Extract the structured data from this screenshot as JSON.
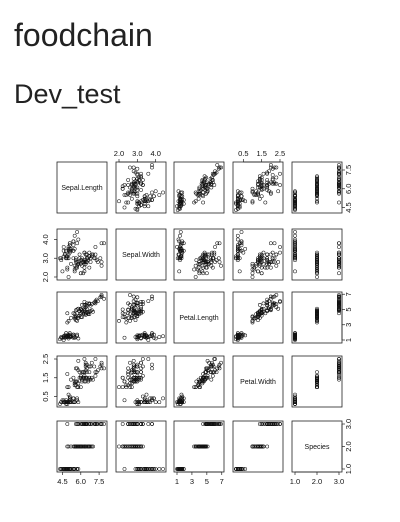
{
  "page": {
    "title": "foodchain",
    "subtitle": "Dev_test"
  },
  "chart_data": {
    "type": "scatter",
    "subtype": "scatterplot-matrix",
    "point_shape": "open-circle",
    "variables": [
      {
        "name": "Sepal.Length",
        "range": [
          4.3,
          7.9
        ],
        "ticks": [
          "4.5",
          "6.0",
          "7.5"
        ],
        "tick_values": [
          4.5,
          6.0,
          7.5
        ]
      },
      {
        "name": "Sepal.Width",
        "range": [
          2.0,
          4.4
        ],
        "ticks": [
          "2.0",
          "3.0",
          "4.0"
        ],
        "tick_values": [
          2.0,
          3.0,
          4.0
        ]
      },
      {
        "name": "Petal.Length",
        "range": [
          1.0,
          6.9
        ],
        "ticks": [
          "1",
          "3",
          "5",
          "7"
        ],
        "tick_values": [
          1,
          3,
          5,
          7
        ]
      },
      {
        "name": "Petal.Width",
        "range": [
          0.1,
          2.5
        ],
        "ticks": [
          "0.5",
          "1.5",
          "2.5"
        ],
        "tick_values": [
          0.5,
          1.5,
          2.5
        ]
      },
      {
        "name": "Species",
        "range": [
          1.0,
          3.0
        ],
        "ticks": [
          "1.0",
          "2.0",
          "3.0"
        ],
        "tick_values": [
          1.0,
          2.0,
          3.0
        ]
      }
    ],
    "records": [
      [
        4.9,
        3.0,
        1.4,
        0.2,
        1
      ],
      [
        4.7,
        3.2,
        1.3,
        0.2,
        1
      ],
      [
        4.6,
        3.1,
        1.5,
        0.2,
        1
      ],
      [
        5.0,
        3.6,
        1.4,
        0.2,
        1
      ],
      [
        5.4,
        3.9,
        1.7,
        0.4,
        1
      ],
      [
        4.6,
        3.4,
        1.4,
        0.3,
        1
      ],
      [
        5.0,
        3.4,
        1.5,
        0.2,
        1
      ],
      [
        4.4,
        2.9,
        1.4,
        0.2,
        1
      ],
      [
        4.9,
        3.1,
        1.5,
        0.1,
        1
      ],
      [
        5.4,
        3.7,
        1.5,
        0.2,
        1
      ],
      [
        4.8,
        3.4,
        1.6,
        0.2,
        1
      ],
      [
        4.8,
        3.0,
        1.4,
        0.1,
        1
      ],
      [
        4.3,
        3.0,
        1.1,
        0.1,
        1
      ],
      [
        5.8,
        4.0,
        1.2,
        0.2,
        1
      ],
      [
        5.7,
        4.4,
        1.5,
        0.4,
        1
      ],
      [
        5.4,
        3.9,
        1.3,
        0.4,
        1
      ],
      [
        5.1,
        3.5,
        1.4,
        0.3,
        1
      ],
      [
        5.7,
        3.8,
        1.7,
        0.3,
        1
      ],
      [
        5.1,
        3.8,
        1.5,
        0.3,
        1
      ],
      [
        5.4,
        3.4,
        1.7,
        0.2,
        1
      ],
      [
        5.1,
        3.7,
        1.5,
        0.4,
        1
      ],
      [
        4.6,
        3.6,
        1.0,
        0.2,
        1
      ],
      [
        5.1,
        3.3,
        1.7,
        0.5,
        1
      ],
      [
        4.8,
        3.4,
        1.9,
        0.2,
        1
      ],
      [
        5.0,
        3.0,
        1.6,
        0.2,
        1
      ],
      [
        5.2,
        3.5,
        1.5,
        0.2,
        1
      ],
      [
        5.2,
        3.4,
        1.4,
        0.2,
        1
      ],
      [
        4.7,
        3.2,
        1.6,
        0.2,
        1
      ],
      [
        4.8,
        3.1,
        1.6,
        0.2,
        1
      ],
      [
        5.4,
        3.4,
        1.5,
        0.4,
        1
      ],
      [
        5.5,
        4.2,
        1.4,
        0.2,
        1
      ],
      [
        4.9,
        3.1,
        1.5,
        0.2,
        1
      ],
      [
        5.0,
        3.2,
        1.2,
        0.2,
        1
      ],
      [
        5.5,
        3.5,
        1.3,
        0.2,
        1
      ],
      [
        4.4,
        3.0,
        1.3,
        0.2,
        1
      ],
      [
        5.1,
        3.4,
        1.5,
        0.2,
        1
      ],
      [
        4.5,
        2.3,
        1.3,
        0.3,
        1
      ],
      [
        5.0,
        3.5,
        1.6,
        0.6,
        1
      ],
      [
        5.1,
        3.8,
        1.9,
        0.4,
        1
      ],
      [
        4.8,
        3.0,
        1.4,
        0.3,
        1
      ],
      [
        7.0,
        3.2,
        4.7,
        1.4,
        2
      ],
      [
        6.4,
        3.2,
        4.5,
        1.5,
        2
      ],
      [
        6.9,
        3.1,
        4.9,
        1.5,
        2
      ],
      [
        5.5,
        2.3,
        4.0,
        1.3,
        2
      ],
      [
        6.5,
        2.8,
        4.6,
        1.5,
        2
      ],
      [
        5.7,
        2.8,
        4.5,
        1.3,
        2
      ],
      [
        6.3,
        3.3,
        4.7,
        1.6,
        2
      ],
      [
        4.9,
        2.4,
        3.3,
        1.0,
        2
      ],
      [
        6.6,
        2.9,
        4.6,
        1.3,
        2
      ],
      [
        5.2,
        2.7,
        3.9,
        1.4,
        2
      ],
      [
        5.0,
        2.0,
        3.5,
        1.0,
        2
      ],
      [
        5.9,
        3.0,
        4.2,
        1.5,
        2
      ],
      [
        6.0,
        2.2,
        4.0,
        1.0,
        2
      ],
      [
        6.1,
        2.9,
        4.7,
        1.4,
        2
      ],
      [
        5.6,
        2.9,
        3.6,
        1.3,
        2
      ],
      [
        6.7,
        3.1,
        4.4,
        1.4,
        2
      ],
      [
        5.8,
        2.7,
        4.1,
        1.0,
        2
      ],
      [
        6.2,
        2.2,
        4.5,
        1.5,
        2
      ],
      [
        5.6,
        2.5,
        3.9,
        1.1,
        2
      ],
      [
        5.9,
        3.2,
        4.8,
        1.8,
        2
      ],
      [
        6.1,
        2.8,
        4.0,
        1.3,
        2
      ],
      [
        6.3,
        2.5,
        4.9,
        1.5,
        2
      ],
      [
        6.4,
        2.9,
        4.3,
        1.3,
        2
      ],
      [
        6.6,
        3.0,
        4.4,
        1.4,
        2
      ],
      [
        6.8,
        2.8,
        4.8,
        1.4,
        2
      ],
      [
        6.0,
        2.9,
        4.5,
        1.5,
        2
      ],
      [
        5.7,
        2.6,
        3.5,
        1.0,
        2
      ],
      [
        5.5,
        2.4,
        3.8,
        1.1,
        2
      ],
      [
        5.8,
        2.7,
        3.9,
        1.2,
        2
      ],
      [
        6.0,
        2.7,
        5.1,
        1.6,
        2
      ],
      [
        5.4,
        3.0,
        4.5,
        1.5,
        2
      ],
      [
        6.7,
        3.1,
        4.7,
        1.5,
        2
      ],
      [
        6.3,
        2.3,
        4.4,
        1.3,
        2
      ],
      [
        5.6,
        3.0,
        4.1,
        1.3,
        2
      ],
      [
        5.5,
        2.6,
        4.4,
        1.2,
        2
      ],
      [
        6.3,
        3.3,
        6.0,
        2.5,
        3
      ],
      [
        5.8,
        2.7,
        5.1,
        1.9,
        3
      ],
      [
        7.1,
        3.0,
        5.9,
        2.1,
        3
      ],
      [
        6.3,
        2.9,
        5.6,
        1.8,
        3
      ],
      [
        6.5,
        3.0,
        5.8,
        2.2,
        3
      ],
      [
        7.6,
        3.0,
        6.6,
        2.1,
        3
      ],
      [
        4.9,
        2.5,
        4.5,
        1.7,
        3
      ],
      [
        7.3,
        2.9,
        6.3,
        1.8,
        3
      ],
      [
        6.7,
        2.5,
        5.8,
        1.8,
        3
      ],
      [
        7.2,
        3.6,
        6.1,
        2.5,
        3
      ],
      [
        6.5,
        3.2,
        5.1,
        2.0,
        3
      ],
      [
        6.4,
        2.7,
        5.3,
        1.9,
        3
      ],
      [
        6.8,
        3.0,
        5.5,
        2.1,
        3
      ],
      [
        5.7,
        2.5,
        5.0,
        2.0,
        3
      ],
      [
        5.8,
        2.8,
        5.1,
        2.4,
        3
      ],
      [
        6.4,
        3.2,
        5.3,
        2.3,
        3
      ],
      [
        6.5,
        3.0,
        5.5,
        1.8,
        3
      ],
      [
        7.7,
        3.8,
        6.7,
        2.2,
        3
      ],
      [
        7.7,
        2.6,
        6.9,
        2.3,
        3
      ],
      [
        6.0,
        2.2,
        5.0,
        1.5,
        3
      ],
      [
        6.9,
        3.2,
        5.7,
        2.3,
        3
      ],
      [
        5.6,
        2.8,
        4.9,
        2.0,
        3
      ],
      [
        7.7,
        2.8,
        6.7,
        2.0,
        3
      ],
      [
        6.3,
        2.7,
        4.9,
        1.8,
        3
      ],
      [
        6.7,
        3.3,
        5.7,
        2.1,
        3
      ],
      [
        7.2,
        3.2,
        6.0,
        1.8,
        3
      ],
      [
        6.2,
        2.8,
        4.8,
        1.8,
        3
      ],
      [
        6.1,
        3.0,
        4.9,
        1.8,
        3
      ],
      [
        6.4,
        2.8,
        5.6,
        2.1,
        3
      ],
      [
        7.2,
        3.0,
        5.8,
        1.6,
        3
      ],
      [
        7.4,
        2.8,
        6.1,
        1.9,
        3
      ],
      [
        7.9,
        3.8,
        6.4,
        2.0,
        3
      ],
      [
        6.4,
        2.8,
        5.6,
        2.2,
        3
      ],
      [
        6.3,
        2.8,
        5.1,
        1.5,
        3
      ],
      [
        6.1,
        2.6,
        5.6,
        1.4,
        3
      ]
    ]
  }
}
